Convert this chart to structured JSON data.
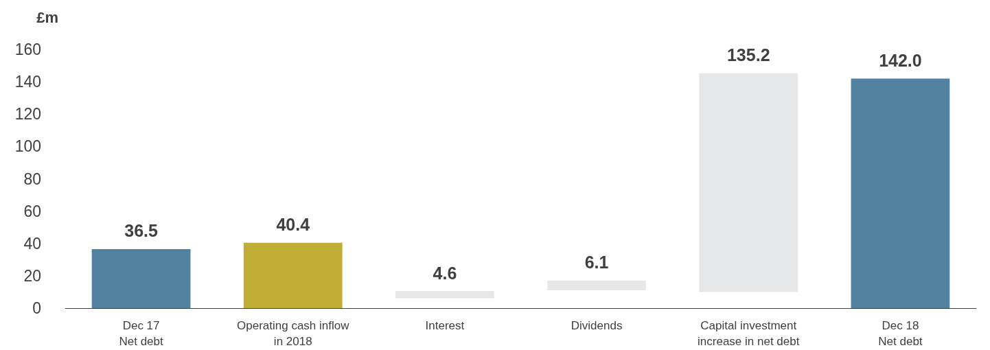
{
  "chart_data": {
    "type": "bar",
    "ylabel": "£m",
    "categories": [
      "Dec 17\nNet debt",
      "Operating cash inflow\nin 2018",
      "Interest",
      "Dividends",
      "Capital investment\nincrease in net debt",
      "Dec 18\nNet debt"
    ],
    "base": [
      0,
      0,
      6,
      11,
      10,
      0
    ],
    "values": [
      36.5,
      40.4,
      4.6,
      6.1,
      135.2,
      142.0
    ],
    "value_labels": [
      "36.5",
      "40.4",
      "4.6",
      "6.1",
      "135.2",
      "142.0"
    ],
    "colors": [
      "#5282a0",
      "#c0ad36",
      "#e6e7e8",
      "#e6e7e8",
      "#e6e7e8",
      "#5282a0"
    ],
    "ylim": [
      0,
      160
    ],
    "yticks": [
      0,
      20,
      40,
      60,
      80,
      100,
      120,
      140,
      160
    ],
    "grid": false
  }
}
